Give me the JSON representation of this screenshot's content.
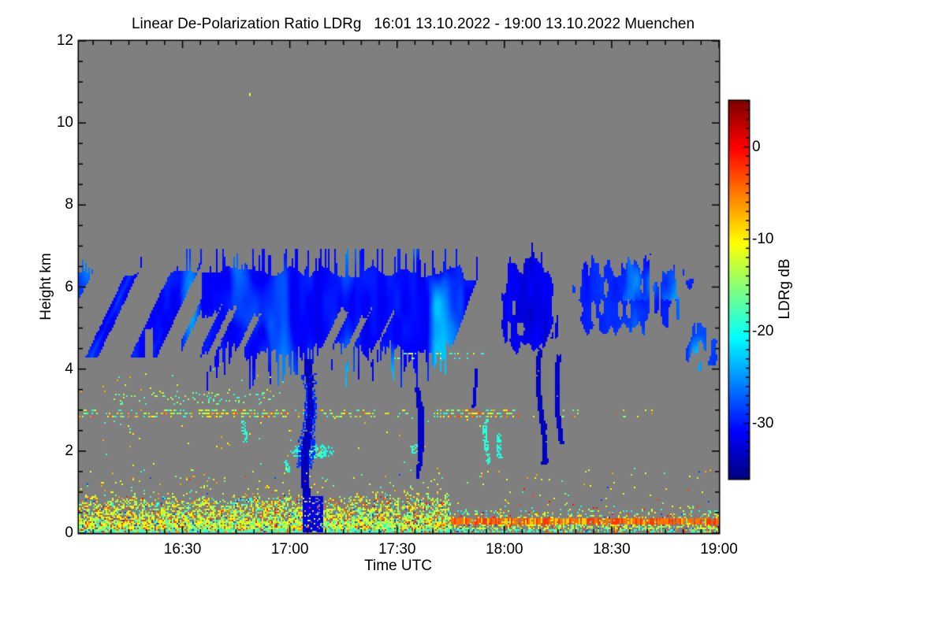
{
  "chart_data": {
    "type": "heatmap",
    "title": "Linear De-Polarization Ratio LDRg   16:01 13.10.2022 - 19:00 13.10.2022 Muenchen",
    "xlabel": "Time UTC",
    "ylabel": "Height km",
    "time_start": "16:01",
    "time_end": "19:00",
    "date": "13.10.2022",
    "station": "Muenchen",
    "x_range_minutes": [
      0,
      179
    ],
    "x_ticks": [
      {
        "label": "16:30",
        "t": 29
      },
      {
        "label": "17:00",
        "t": 59
      },
      {
        "label": "17:30",
        "t": 89
      },
      {
        "label": "18:00",
        "t": 119
      },
      {
        "label": "18:30",
        "t": 149
      },
      {
        "label": "19:00",
        "t": 179
      }
    ],
    "x_minor_step_minutes": 5,
    "ylim": [
      0,
      12
    ],
    "y_ticks": [
      0,
      2,
      4,
      6,
      8,
      10,
      12
    ],
    "y_minor_step_km": 0.5,
    "colorbar": {
      "label": "LDRg dB",
      "ticks": [
        0,
        -10,
        -20,
        -30
      ],
      "range_top_db": 5,
      "range_bottom_db": -36,
      "minor_step_db": 1,
      "colormap": "jet"
    },
    "colors": {
      "no_data": "#7f7f7f",
      "frame": "#000000",
      "page_bg": "#ffffff",
      "text": "#000000"
    },
    "features": {
      "main_cloud": {
        "t_range": [
          0,
          114
        ],
        "top_km": [
          6.1,
          6.9
        ],
        "base_km": [
          4.2,
          4.7
        ],
        "ldr_db": -30.5,
        "left_streaky_until_min": 34,
        "desc": "ice cloud layer, blue, slanted fall streak texture"
      },
      "cloud_patches": [
        {
          "t0": 114.5,
          "t1": 118,
          "base": 4.7,
          "top": 6.1,
          "v": -30.5,
          "thr": 0.55,
          "amp": 0.6,
          "spike": 0.0,
          "light": 0,
          "seed": 44
        },
        {
          "t0": 118,
          "t1": 133.5,
          "base": 4.55,
          "top": 6.5,
          "v": -31.8,
          "thr": 0.2,
          "amp": 0.5,
          "spike": 0.5,
          "light": 4,
          "seed": 40
        },
        {
          "t0": 139.5,
          "t1": 168,
          "base": 5.0,
          "top": 6.4,
          "v": -29.6,
          "thr": 0.3,
          "amp": 0.45,
          "spike": 0.4,
          "light": 7,
          "seed": 48,
          "notch": {
            "t": 160.5,
            "w": 2.2,
            "s": 0.28
          }
        },
        {
          "t0": 136,
          "t1": 139,
          "base": 5.7,
          "top": 6.25,
          "v": -29.5,
          "thr": 0.62,
          "amp": 0.3,
          "spike": 0.0,
          "light": 0,
          "seed": 52
        },
        {
          "t0": 169.5,
          "t1": 179,
          "base": 4.05,
          "top": 5.0,
          "v": -28.2,
          "thr": 0.28,
          "amp": 0.35,
          "spike": 0.2,
          "light": 6,
          "seed": 56
        },
        {
          "t0": 169,
          "t1": 174.5,
          "base": 6.0,
          "top": 6.6,
          "v": -29.3,
          "thr": 0.5,
          "amp": 0.3,
          "spike": 0.0,
          "light": 0,
          "seed": 60
        }
      ],
      "fall_streaks": [
        {
          "t": 64.5,
          "hTop": 4.25,
          "hBot": 0.06,
          "w": 8,
          "drift": -6,
          "v": -33.5,
          "seed": 1,
          "halo": true
        },
        {
          "t": 94.8,
          "hTop": 3.55,
          "hBot": 1.35,
          "w": 5,
          "drift": 3,
          "v": -33.0,
          "seed": 2,
          "halo": false
        },
        {
          "t": 128.5,
          "hTop": 4.5,
          "hBot": 1.7,
          "w": 5,
          "drift": 6,
          "v": -33.5,
          "seed": 3,
          "halo": false
        },
        {
          "t": 133.5,
          "hTop": 4.35,
          "hBot": 2.2,
          "w": 4,
          "drift": 5,
          "v": -33.0,
          "seed": 4,
          "halo": false
        },
        {
          "t": 110.5,
          "hTop": 4.0,
          "hBot": 3.1,
          "w": 3,
          "drift": 1,
          "v": -32.5,
          "seed": 5,
          "halo": false
        }
      ],
      "cyan_blobs": [
        {
          "t0": 58.5,
          "t1": 71,
          "h0": 1.82,
          "h1": 2.2,
          "v": -19.5,
          "p": 0.8
        },
        {
          "t0": 92.3,
          "t1": 95.8,
          "h0": 1.95,
          "h1": 2.2,
          "v": -18.5,
          "p": 0.85
        }
      ],
      "cyan_streaklets": [
        {
          "t": 46.3,
          "h0": 2.25,
          "h1": 2.75,
          "v": -19
        },
        {
          "t": 113.8,
          "h0": 1.7,
          "h1": 2.8,
          "v": -19
        },
        {
          "t": 117.5,
          "h0": 1.85,
          "h1": 2.45,
          "v": -19.5
        },
        {
          "t": 58.0,
          "h0": 1.5,
          "h1": 1.8,
          "v": -19
        }
      ],
      "aerosol_band_3km": {
        "h_rows": [
          2.86,
          2.94,
          3.02
        ],
        "segments": [
          [
            0,
            30,
            0.45
          ],
          [
            30,
            58,
            0.62
          ],
          [
            58,
            68,
            0.3
          ],
          [
            68,
            92,
            0.35
          ],
          [
            92,
            99,
            0.06
          ],
          [
            99,
            123,
            0.55
          ],
          [
            123,
            140,
            0.14
          ],
          [
            140,
            162,
            0.08
          ],
          [
            162,
            179,
            0.02
          ]
        ]
      },
      "upper_band": {
        "t": [
          8,
          55
        ],
        "h": [
          3.15,
          3.45
        ],
        "p": 0.08
      },
      "subcloud_dots": {
        "t": [
          88,
          113
        ],
        "h": [
          4.3,
          4.42
        ],
        "p": 0.3
      },
      "boundary_layer": {
        "t_dense_until": 104,
        "h_top_km": [
          0.55,
          1.15
        ],
        "sparse_top_km": 1.7,
        "desc": "noisy aerosol layer, yellow/green/cyan with orange-red specks"
      },
      "surface_line": {
        "t": [
          104,
          179
        ],
        "h": [
          0.26,
          0.38
        ],
        "ldr_db": -4.5
      },
      "ground_streak": {
        "t": [
          62.5,
          68.2
        ],
        "h": [
          0,
          0.95
        ],
        "v": -33
      },
      "speck": {
        "t": 47.5,
        "h": 10.75,
        "v": -12.5
      }
    }
  }
}
